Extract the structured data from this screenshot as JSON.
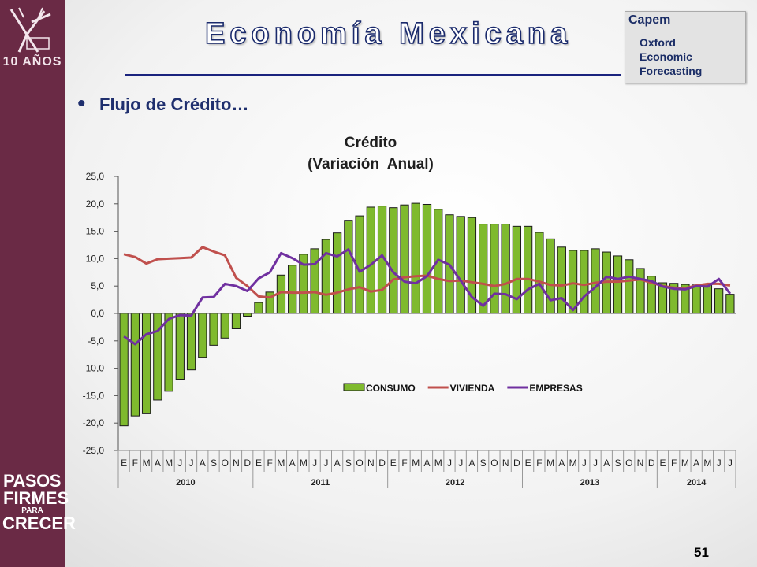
{
  "slide": {
    "title": "Economía Mexicana",
    "bullet_text": "Flujo de Crédito…",
    "page_number": "51",
    "brand_color": "#6a2a45",
    "accent_color": "#1a237e"
  },
  "logos": {
    "top_left_icon": "anniversary-emblem-icon",
    "top_left_text": "10 AÑOS",
    "bottom_left_lines": [
      "PASOS",
      "FIRMES",
      "PARA",
      "CRECER"
    ],
    "top_right_lines": [
      "Capem",
      "Oxford",
      "Economic",
      "Forecasting"
    ]
  },
  "chart_data": {
    "type": "bar",
    "title": "Crédito",
    "subtitle": "(Variación  Anual)",
    "ylim": [
      -25,
      25
    ],
    "yticks": [
      "25,0",
      "20,0",
      "15,0",
      "10,0",
      "5,0",
      "0,0",
      "-5,0",
      "-10,0",
      "-15,0",
      "-20,0",
      "-25,0"
    ],
    "ytick_values": [
      25,
      20,
      15,
      10,
      5,
      0,
      -5,
      -10,
      -15,
      -20,
      -25
    ],
    "categories": [
      "E",
      "F",
      "M",
      "A",
      "M",
      "J",
      "J",
      "A",
      "S",
      "O",
      "N",
      "D",
      "E",
      "F",
      "M",
      "A",
      "M",
      "J",
      "J",
      "A",
      "S",
      "O",
      "N",
      "D",
      "E",
      "F",
      "M",
      "A",
      "M",
      "J",
      "J",
      "A",
      "S",
      "O",
      "N",
      "D",
      "E",
      "F",
      "M",
      "A",
      "M",
      "J",
      "J",
      "A",
      "S",
      "O",
      "N",
      "D",
      "E",
      "F",
      "M",
      "A",
      "M",
      "J",
      "J"
    ],
    "years": [
      {
        "label": "2010",
        "months": 12
      },
      {
        "label": "2011",
        "months": 12
      },
      {
        "label": "2012",
        "months": 12
      },
      {
        "label": "2013",
        "months": 12
      },
      {
        "label": "2014",
        "months": 7
      }
    ],
    "legend_position": "inside-bottom-right",
    "series": [
      {
        "name": "CONSUMO",
        "kind": "bar",
        "color": "#7fba2e",
        "values": [
          -20.5,
          -18.7,
          -18.3,
          -15.8,
          -14.2,
          -12.0,
          -10.3,
          -8.0,
          -5.8,
          -4.5,
          -2.8,
          -0.5,
          2.0,
          3.9,
          7.0,
          8.8,
          10.8,
          11.8,
          13.5,
          14.7,
          17.0,
          17.8,
          19.4,
          19.6,
          19.3,
          19.8,
          20.1,
          19.9,
          19.0,
          18.0,
          17.7,
          17.5,
          16.3,
          16.3,
          16.3,
          15.9,
          15.9,
          14.8,
          13.6,
          12.1,
          11.5,
          11.5,
          11.8,
          11.2,
          10.5,
          9.8,
          8.2,
          6.8,
          5.6,
          5.5,
          5.3,
          5.2,
          5.3,
          4.5,
          3.5
        ]
      },
      {
        "name": "VIVIENDA",
        "kind": "line",
        "color": "#c0504d",
        "values": [
          10.8,
          10.3,
          9.1,
          9.9,
          10.0,
          10.1,
          10.2,
          12.1,
          11.3,
          10.6,
          6.5,
          5.0,
          3.1,
          2.9,
          3.9,
          3.8,
          3.8,
          3.9,
          3.4,
          3.8,
          4.4,
          4.8,
          4.0,
          4.3,
          6.2,
          6.6,
          6.8,
          6.9,
          6.3,
          5.9,
          6.0,
          5.7,
          5.4,
          5.0,
          5.4,
          6.3,
          6.3,
          5.8,
          5.2,
          5.1,
          5.5,
          5.2,
          5.6,
          5.8,
          5.8,
          6.0,
          6.2,
          5.6,
          5.0,
          4.7,
          4.6,
          5.1,
          5.4,
          5.4,
          5.1
        ]
      },
      {
        "name": "EMPRESAS",
        "kind": "line",
        "color": "#7030a0",
        "values": [
          -4.2,
          -5.6,
          -3.8,
          -3.2,
          -1.0,
          -0.3,
          -0.4,
          2.9,
          3.0,
          5.4,
          5.0,
          4.1,
          6.4,
          7.5,
          11.0,
          10.1,
          8.9,
          9.0,
          11.0,
          10.4,
          11.7,
          7.6,
          8.9,
          10.6,
          7.5,
          5.8,
          5.5,
          6.8,
          9.8,
          8.9,
          6.0,
          3.0,
          1.4,
          3.6,
          3.5,
          2.6,
          4.4,
          5.4,
          2.4,
          2.8,
          0.6,
          3.1,
          4.8,
          6.7,
          6.3,
          6.7,
          6.3,
          5.9,
          4.9,
          4.5,
          4.4,
          5.0,
          4.9,
          6.3,
          3.6
        ]
      }
    ]
  }
}
